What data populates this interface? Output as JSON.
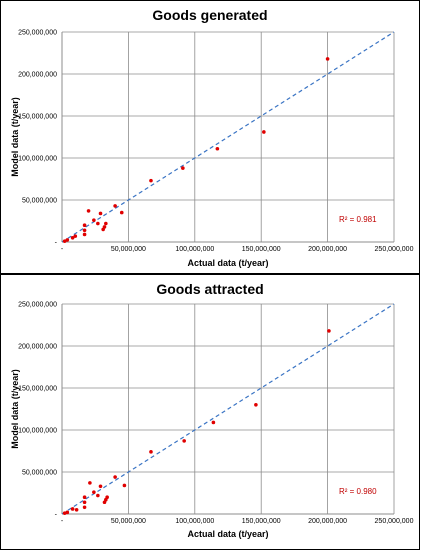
{
  "chart_data": [
    {
      "type": "scatter",
      "title": "Goods generated",
      "xlabel": "Actual data (t/year)",
      "ylabel": "Model data (t/year)",
      "xlim": [
        0,
        250000000
      ],
      "ylim": [
        0,
        250000000
      ],
      "xticks": [
        "-",
        "50,000,000",
        "100,000,000",
        "150,000,000",
        "200,000,000",
        "250,000,000"
      ],
      "yticks": [
        "-",
        "50,000,000",
        "100,000,000",
        "150,000,000",
        "200,000,000",
        "250,000,000"
      ],
      "grid": true,
      "annotation": "R² = 0.981",
      "point_color": "#e00000",
      "trendline": {
        "style": "dashed",
        "color": "#3a74c4",
        "points": [
          [
            0,
            0
          ],
          [
            250000000,
            250000000
          ]
        ]
      },
      "points": [
        [
          2000000,
          1000000
        ],
        [
          4000000,
          2500000
        ],
        [
          8000000,
          5000000
        ],
        [
          10000000,
          7000000
        ],
        [
          17000000,
          9000000
        ],
        [
          17000000,
          14000000
        ],
        [
          17000000,
          20000000
        ],
        [
          20000000,
          37000000
        ],
        [
          24000000,
          26000000
        ],
        [
          27000000,
          22000000
        ],
        [
          29000000,
          34000000
        ],
        [
          31000000,
          15000000
        ],
        [
          32000000,
          18000000
        ],
        [
          33000000,
          22000000
        ],
        [
          40000000,
          43000000
        ],
        [
          45000000,
          35000000
        ],
        [
          67000000,
          73000000
        ],
        [
          91000000,
          88000000
        ],
        [
          117000000,
          111000000
        ],
        [
          152000000,
          131000000
        ],
        [
          200000000,
          218000000
        ]
      ]
    },
    {
      "type": "scatter",
      "title": "Goods attracted",
      "xlabel": "Actual data (t/year)",
      "ylabel": "Model data (t/year)",
      "xlim": [
        0,
        250000000
      ],
      "ylim": [
        0,
        250000000
      ],
      "xticks": [
        "-",
        "50,000,000",
        "100,000,000",
        "150,000,000",
        "200,000,000",
        "250,000,000"
      ],
      "yticks": [
        "-",
        "50,000,000",
        "100,000,000",
        "150,000,000",
        "200,000,000",
        "250,000,000"
      ],
      "grid": true,
      "annotation": "R² = 0.980",
      "point_color": "#e00000",
      "trendline": {
        "style": "dashed",
        "color": "#3a74c4",
        "points": [
          [
            0,
            0
          ],
          [
            250000000,
            250000000
          ]
        ]
      },
      "points": [
        [
          2000000,
          1000000
        ],
        [
          4000000,
          2000000
        ],
        [
          8000000,
          6000000
        ],
        [
          11000000,
          5000000
        ],
        [
          17000000,
          8000000
        ],
        [
          17000000,
          14000000
        ],
        [
          17000000,
          20000000
        ],
        [
          21000000,
          37000000
        ],
        [
          24000000,
          26000000
        ],
        [
          27000000,
          22000000
        ],
        [
          29000000,
          33000000
        ],
        [
          32000000,
          14000000
        ],
        [
          33000000,
          17000000
        ],
        [
          34000000,
          20000000
        ],
        [
          40000000,
          44000000
        ],
        [
          47000000,
          34000000
        ],
        [
          67000000,
          74000000
        ],
        [
          92000000,
          87000000
        ],
        [
          114000000,
          109000000
        ],
        [
          146000000,
          130000000
        ],
        [
          201000000,
          218000000
        ]
      ]
    }
  ]
}
